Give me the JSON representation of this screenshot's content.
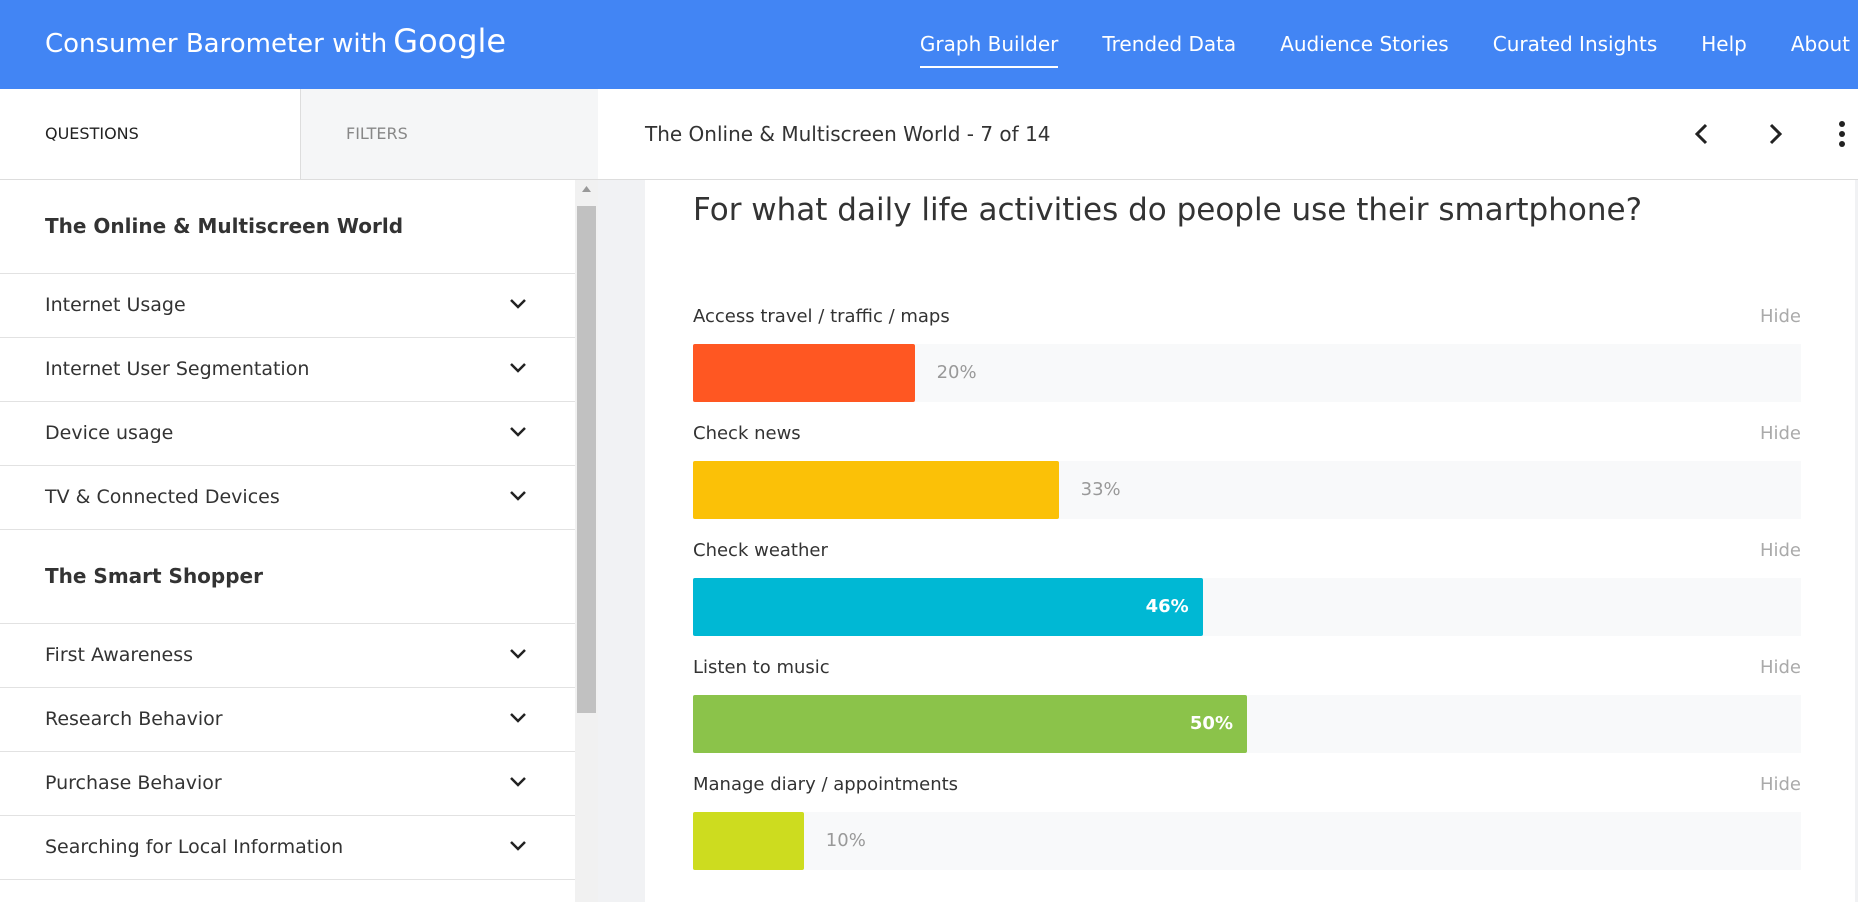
{
  "header": {
    "brand": "Consumer Barometer with",
    "brand_logo": "Google",
    "nav": [
      {
        "label": "Graph Builder",
        "active": true
      },
      {
        "label": "Trended Data",
        "active": false
      },
      {
        "label": "Audience Stories",
        "active": false
      },
      {
        "label": "Curated Insights",
        "active": false
      },
      {
        "label": "Help",
        "active": false
      },
      {
        "label": "About",
        "active": false
      }
    ]
  },
  "tabs": [
    "QUESTIONS",
    "FILTERS"
  ],
  "breadcrumb": "The Online & Multiscreen World - 7 of 14",
  "sidebar": [
    {
      "heading": "The Online & Multiscreen World",
      "items": [
        "Internet Usage",
        "Internet User Segmentation",
        "Device usage",
        "TV & Connected Devices"
      ]
    },
    {
      "heading": "The Smart Shopper",
      "items": [
        "First Awareness",
        "Research Behavior",
        "Purchase Behavior",
        "Searching for Local Information"
      ]
    }
  ],
  "chart_data": {
    "type": "bar",
    "title": "For what daily life activities do people use their smartphone?",
    "categories": [
      "Access travel / traffic / maps",
      "Check news",
      "Check weather",
      "Listen to music",
      "Manage diary / appointments"
    ],
    "values": [
      20,
      33,
      46,
      50,
      10
    ],
    "value_labels": [
      "20%",
      "33%",
      "46%",
      "50%",
      "10%"
    ],
    "colors": [
      "#ff5722",
      "#fbc107",
      "#00b8d4",
      "#8bc34a",
      "#cddc1f"
    ],
    "xlim": [
      0,
      100
    ],
    "action_label": "Hide"
  }
}
